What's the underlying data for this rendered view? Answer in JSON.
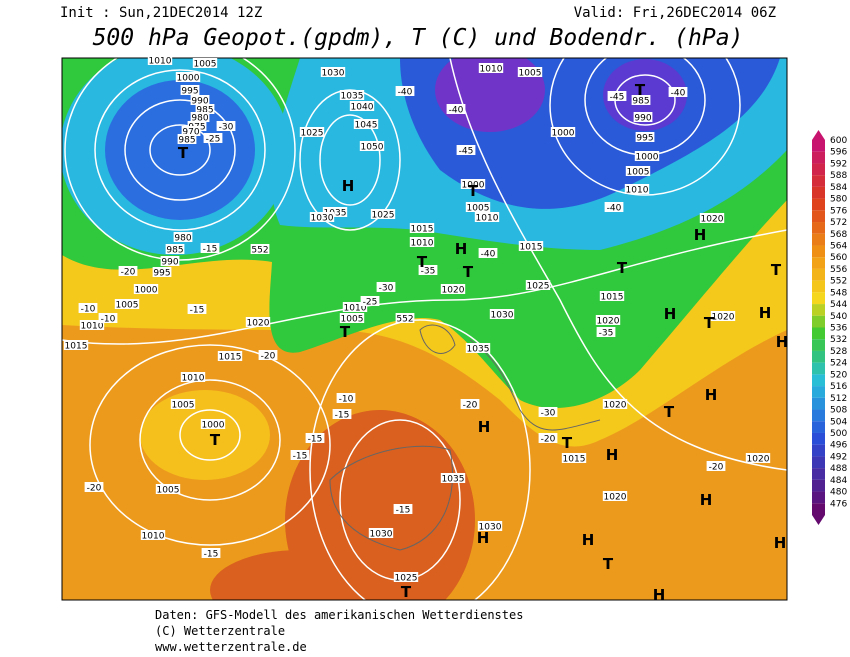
{
  "header": {
    "init": "Init : Sun,21DEC2014 12Z",
    "valid": "Valid: Fri,26DEC2014 06Z",
    "title": "500 hPa Geopot.(gpdm), T (C) und Bodendr. (hPa)"
  },
  "colorbar": {
    "labels": [
      600,
      596,
      592,
      588,
      584,
      580,
      576,
      572,
      568,
      564,
      560,
      556,
      552,
      548,
      544,
      540,
      536,
      532,
      528,
      524,
      520,
      516,
      512,
      508,
      504,
      500,
      496,
      492,
      488,
      484,
      480,
      476
    ]
  },
  "map": {
    "pressure_labels": [
      "1010",
      "1005",
      "1000",
      "995",
      "990",
      "985",
      "980",
      "975",
      "970",
      "985",
      "1030",
      "1035",
      "1040",
      "1045",
      "1050",
      "1025",
      "1035",
      "1030",
      "1025",
      "1015",
      "1010",
      "1020",
      "1010",
      "1005",
      "1010",
      "1005",
      "1000",
      "1000",
      "1005",
      "1010",
      "1015",
      "1025",
      "1030",
      "1035",
      "1015",
      "1020",
      "985",
      "990",
      "995",
      "1000",
      "1005",
      "1010",
      "1020",
      "1020",
      "1020",
      "1015",
      "1020",
      "1020",
      "1025",
      "1030",
      "1035",
      "1030",
      "1020",
      "1015",
      "1010",
      "1005",
      "1000",
      "1005",
      "1010",
      "1015",
      "1010",
      "1005",
      "1000",
      "995",
      "990",
      "985",
      "980"
    ],
    "temperature_labels": [
      "-40",
      "-40",
      "-45",
      "-40",
      "-45",
      "-40",
      "-40",
      "-35",
      "-30",
      "-25",
      "-20",
      "-20",
      "-15",
      "-15",
      "-10",
      "-10",
      "-20",
      "-20",
      "-15",
      "-15",
      "-15",
      "-15",
      "-10",
      "-15",
      "-20",
      "-20",
      "-30",
      "-35",
      "-30",
      "-25"
    ],
    "contour_labels": [
      "552",
      "552"
    ],
    "centers": [
      "T",
      "H",
      "H",
      "T",
      "T",
      "T",
      "H",
      "T",
      "T",
      "T",
      "H",
      "H",
      "T",
      "H",
      "H",
      "H",
      "T",
      "H",
      "T",
      "H",
      "H",
      "H",
      "T",
      "T",
      "H",
      "H",
      "T",
      "T"
    ]
  },
  "footer": {
    "lines": [
      "Daten: GFS-Modell des amerikanischen Wetterdienstes",
      "(C) Wetterzentrale",
      "www.wetterzentrale.de"
    ]
  }
}
